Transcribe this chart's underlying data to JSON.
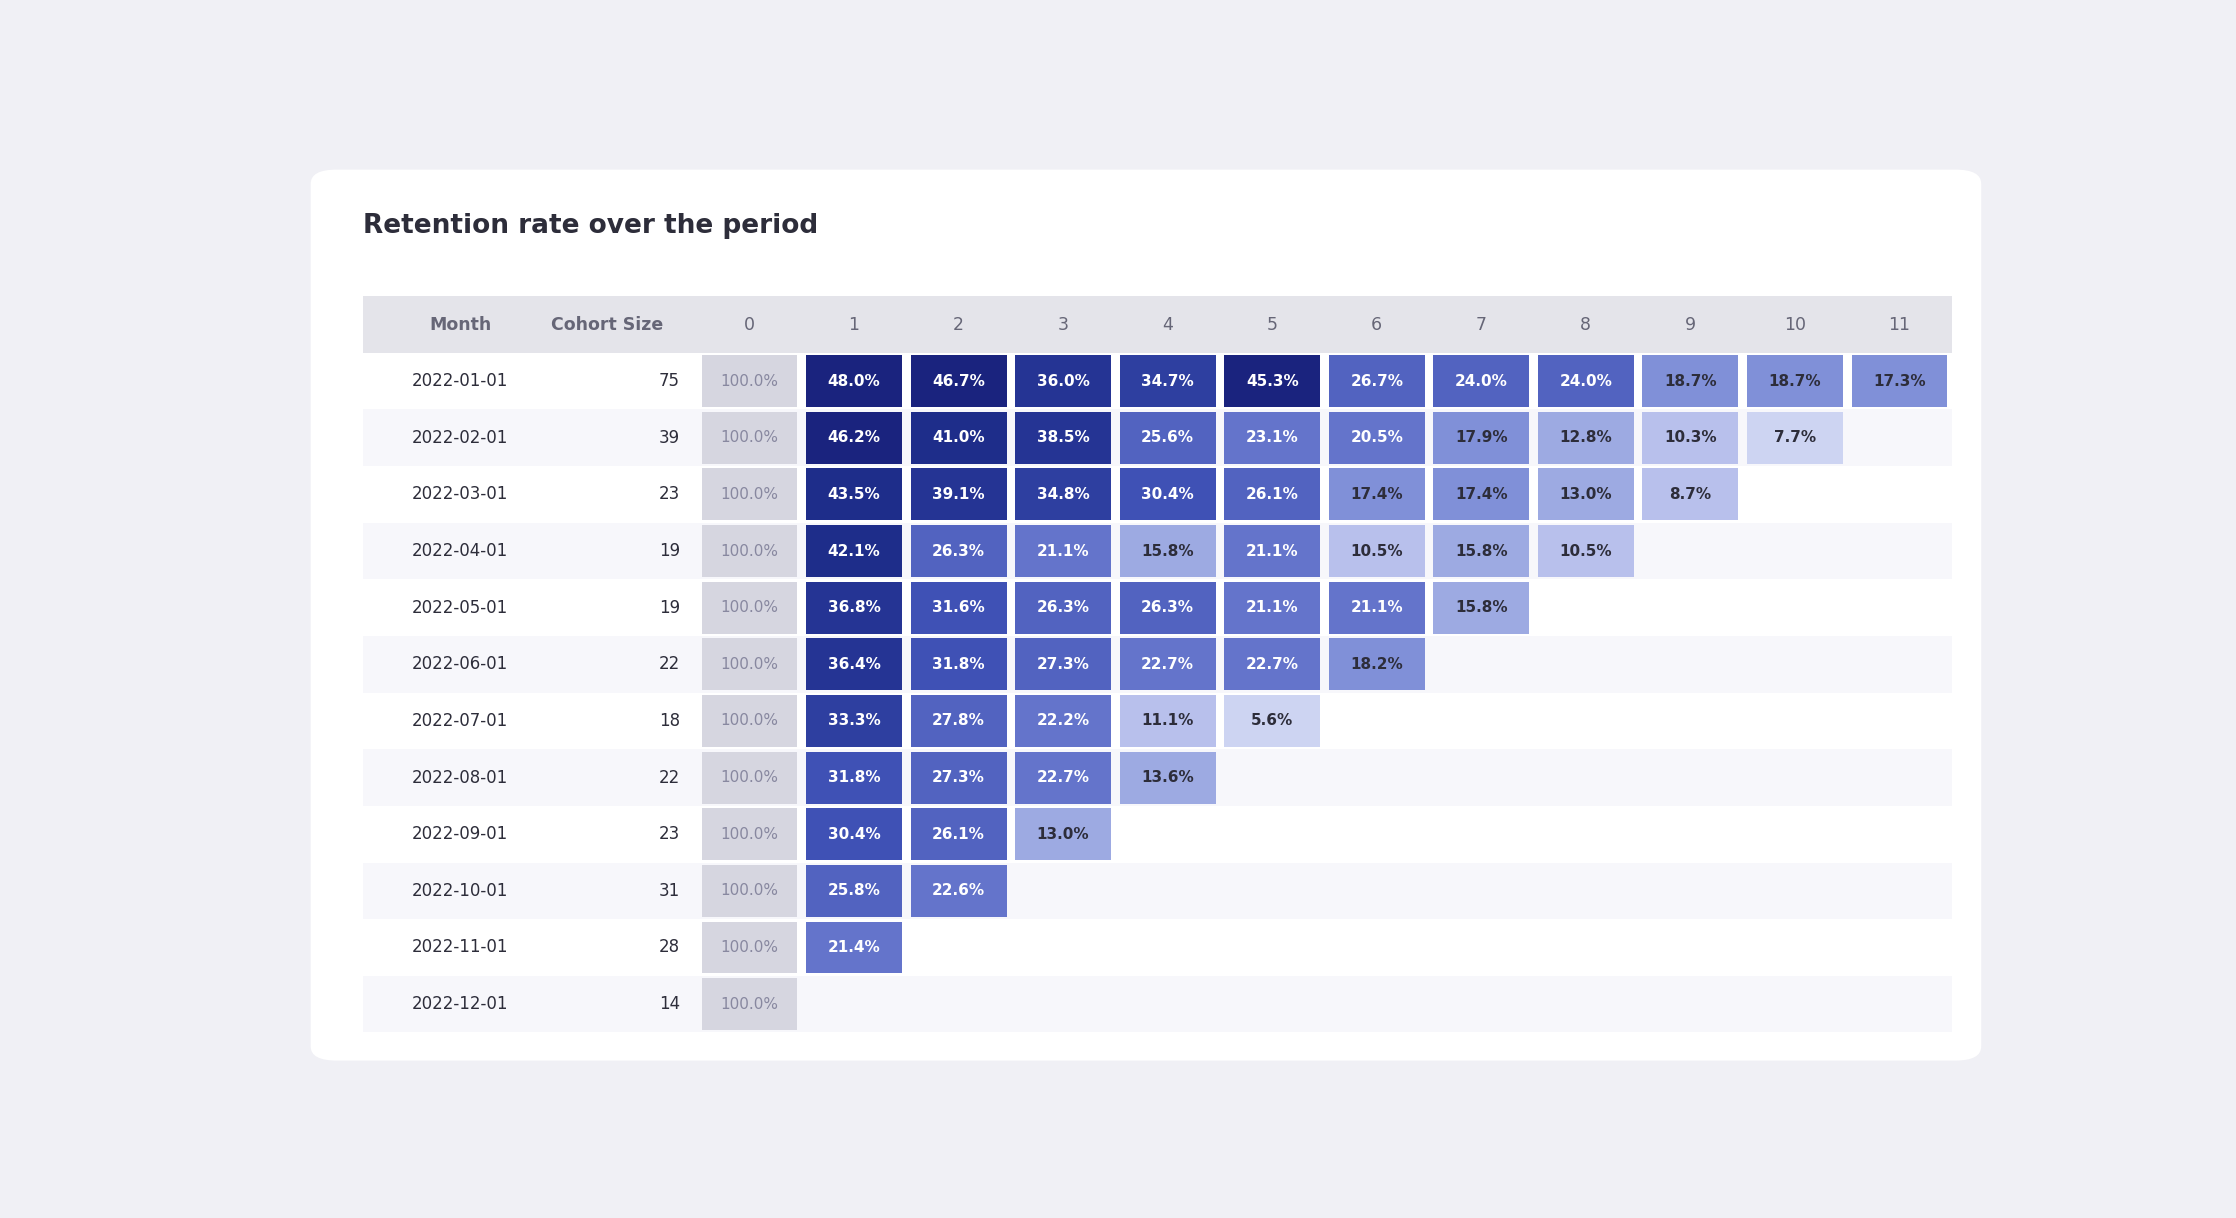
{
  "title": "Retention rate over the period",
  "rows": [
    {
      "month": "2022-01-01",
      "size": 75,
      "values": [
        100.0,
        48.0,
        46.7,
        36.0,
        34.7,
        45.3,
        26.7,
        24.0,
        24.0,
        18.7,
        18.7,
        17.3
      ]
    },
    {
      "month": "2022-02-01",
      "size": 39,
      "values": [
        100.0,
        46.2,
        41.0,
        38.5,
        25.6,
        23.1,
        20.5,
        17.9,
        12.8,
        10.3,
        7.7,
        null
      ]
    },
    {
      "month": "2022-03-01",
      "size": 23,
      "values": [
        100.0,
        43.5,
        39.1,
        34.8,
        30.4,
        26.1,
        17.4,
        17.4,
        13.0,
        8.7,
        null,
        null
      ]
    },
    {
      "month": "2022-04-01",
      "size": 19,
      "values": [
        100.0,
        42.1,
        26.3,
        21.1,
        15.8,
        21.1,
        10.5,
        15.8,
        10.5,
        null,
        null,
        null
      ]
    },
    {
      "month": "2022-05-01",
      "size": 19,
      "values": [
        100.0,
        36.8,
        31.6,
        26.3,
        26.3,
        21.1,
        21.1,
        15.8,
        null,
        null,
        null,
        null
      ]
    },
    {
      "month": "2022-06-01",
      "size": 22,
      "values": [
        100.0,
        36.4,
        31.8,
        27.3,
        22.7,
        22.7,
        18.2,
        null,
        null,
        null,
        null,
        null
      ]
    },
    {
      "month": "2022-07-01",
      "size": 18,
      "values": [
        100.0,
        33.3,
        27.8,
        22.2,
        11.1,
        5.6,
        null,
        null,
        null,
        null,
        null,
        null
      ]
    },
    {
      "month": "2022-08-01",
      "size": 22,
      "values": [
        100.0,
        31.8,
        27.3,
        22.7,
        13.6,
        null,
        null,
        null,
        null,
        null,
        null,
        null
      ]
    },
    {
      "month": "2022-09-01",
      "size": 23,
      "values": [
        100.0,
        30.4,
        26.1,
        13.0,
        null,
        null,
        null,
        null,
        null,
        null,
        null,
        null
      ]
    },
    {
      "month": "2022-10-01",
      "size": 31,
      "values": [
        100.0,
        25.8,
        22.6,
        null,
        null,
        null,
        null,
        null,
        null,
        null,
        null,
        null
      ]
    },
    {
      "month": "2022-11-01",
      "size": 28,
      "values": [
        100.0,
        21.4,
        null,
        null,
        null,
        null,
        null,
        null,
        null,
        null,
        null,
        null
      ]
    },
    {
      "month": "2022-12-01",
      "size": 14,
      "values": [
        100.0,
        null,
        null,
        null,
        null,
        null,
        null,
        null,
        null,
        null,
        null,
        null
      ]
    }
  ],
  "bg_color": "#f0f0f5",
  "card_color": "#ffffff",
  "header_bg": "#e4e4ea",
  "title_color": "#2d2d3a",
  "header_text_color": "#666677",
  "month_text_color": "#2d2d3a",
  "size_text_color": "#2d2d3a",
  "col0_text_color": "#8888a0",
  "white_text_color": "#ffffff",
  "dark_text_color": "#2d2d3a"
}
